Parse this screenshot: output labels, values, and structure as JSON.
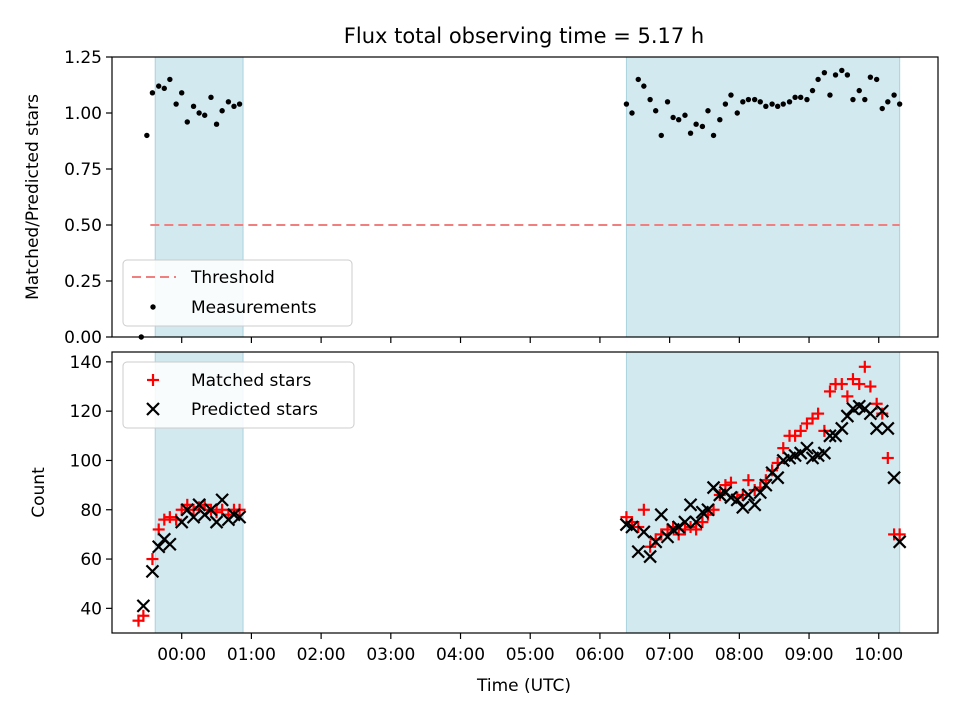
{
  "chart_data": [
    {
      "type": "scatter",
      "title": "Flux total observing time = 5.17 h",
      "ylabel": "Matched/Predicted stars",
      "xlabel": "",
      "ylim": [
        0,
        1.25
      ],
      "yticks": [
        "0.00",
        "0.25",
        "0.50",
        "0.75",
        "1.00",
        "1.25"
      ],
      "ytick_values": [
        0,
        0.25,
        0.5,
        0.75,
        1.0,
        1.25
      ],
      "threshold": 0.5,
      "legend": {
        "placement": "lower-left",
        "threshold_label": "Threshold",
        "measurements_label": "Measurements"
      },
      "series": [
        {
          "name": "Measurements",
          "color": "#000000",
          "x": [
            -0.58,
            -0.5,
            -0.42,
            -0.33,
            -0.25,
            -0.17,
            -0.08,
            0.0,
            0.08,
            0.17,
            0.25,
            0.33,
            0.42,
            0.5,
            0.58,
            0.67,
            0.75,
            0.83,
            6.38,
            6.46,
            6.55,
            6.63,
            6.72,
            6.8,
            6.88,
            6.97,
            7.05,
            7.13,
            7.22,
            7.3,
            7.38,
            7.47,
            7.55,
            7.63,
            7.72,
            7.8,
            7.88,
            7.97,
            8.05,
            8.13,
            8.22,
            8.3,
            8.38,
            8.47,
            8.55,
            8.63,
            8.72,
            8.8,
            8.88,
            8.97,
            9.05,
            9.13,
            9.22,
            9.3,
            9.38,
            9.47,
            9.55,
            9.63,
            9.72,
            9.8,
            9.88,
            9.97,
            10.05,
            10.13,
            10.22,
            10.3
          ],
          "y": [
            0.0,
            0.9,
            1.09,
            1.12,
            1.11,
            1.15,
            1.04,
            1.09,
            0.96,
            1.03,
            1.0,
            0.99,
            1.07,
            0.95,
            1.01,
            1.05,
            1.03,
            1.04,
            1.04,
            1.0,
            1.15,
            1.12,
            1.06,
            1.01,
            0.9,
            1.05,
            0.98,
            0.97,
            0.99,
            0.91,
            0.95,
            0.94,
            1.01,
            0.9,
            0.97,
            1.04,
            1.08,
            1.0,
            1.05,
            1.06,
            1.06,
            1.05,
            1.03,
            1.04,
            1.03,
            1.04,
            1.05,
            1.07,
            1.07,
            1.06,
            1.1,
            1.15,
            1.18,
            1.08,
            1.17,
            1.19,
            1.17,
            1.06,
            1.1,
            1.06,
            1.16,
            1.15,
            1.02,
            1.05,
            1.08,
            1.04
          ]
        }
      ]
    },
    {
      "type": "scatter",
      "title": "",
      "ylabel": "Count",
      "xlabel": "Time (UTC)",
      "ylim": [
        30,
        144
      ],
      "yticks": [
        "40",
        "60",
        "80",
        "100",
        "120",
        "140"
      ],
      "ytick_values": [
        40,
        60,
        80,
        100,
        120,
        140
      ],
      "legend": {
        "placement": "upper-left"
      },
      "series": [
        {
          "name": "Matched stars",
          "color": "#ff0000",
          "marker": "+",
          "x": [
            -0.62,
            -0.55,
            -0.42,
            -0.33,
            -0.25,
            -0.17,
            -0.08,
            0.0,
            0.08,
            0.17,
            0.25,
            0.33,
            0.42,
            0.5,
            0.58,
            0.67,
            0.75,
            0.83,
            6.38,
            6.46,
            6.55,
            6.63,
            6.72,
            6.8,
            6.88,
            6.97,
            7.05,
            7.13,
            7.22,
            7.3,
            7.38,
            7.47,
            7.55,
            7.63,
            7.72,
            7.8,
            7.88,
            7.97,
            8.05,
            8.13,
            8.22,
            8.3,
            8.38,
            8.47,
            8.55,
            8.63,
            8.72,
            8.8,
            8.88,
            8.97,
            9.05,
            9.13,
            9.22,
            9.3,
            9.38,
            9.47,
            9.55,
            9.63,
            9.72,
            9.8,
            9.88,
            9.97,
            10.05,
            10.13,
            10.22,
            10.3
          ],
          "y": [
            35,
            37,
            60,
            72,
            76,
            77,
            76,
            80,
            82,
            80,
            81,
            82,
            80,
            79,
            80,
            78,
            80,
            80,
            77,
            75,
            73,
            80,
            65,
            68,
            70,
            72,
            73,
            70,
            72,
            73,
            72,
            75,
            78,
            80,
            86,
            90,
            91,
            85,
            86,
            92,
            88,
            89,
            92,
            96,
            99,
            105,
            110,
            110,
            112,
            115,
            117,
            119,
            112,
            128,
            131,
            131,
            126,
            133,
            131,
            138,
            130,
            123,
            119,
            101,
            70,
            70
          ]
        },
        {
          "name": "Predicted stars",
          "color": "#000000",
          "marker": "x",
          "x": [
            -0.55,
            -0.42,
            -0.33,
            -0.25,
            -0.17,
            0.0,
            0.08,
            0.17,
            0.25,
            0.33,
            0.42,
            0.5,
            0.58,
            0.67,
            0.75,
            0.83,
            6.38,
            6.46,
            6.55,
            6.63,
            6.72,
            6.8,
            6.88,
            6.97,
            7.05,
            7.13,
            7.22,
            7.3,
            7.38,
            7.47,
            7.55,
            7.63,
            7.72,
            7.8,
            7.88,
            7.97,
            8.05,
            8.13,
            8.22,
            8.3,
            8.38,
            8.47,
            8.55,
            8.63,
            8.72,
            8.8,
            8.88,
            8.97,
            9.05,
            9.13,
            9.22,
            9.3,
            9.38,
            9.47,
            9.55,
            9.63,
            9.72,
            9.8,
            9.88,
            9.97,
            10.05,
            10.13,
            10.22,
            10.3
          ],
          "y": [
            41,
            55,
            65,
            68,
            66,
            75,
            80,
            77,
            82,
            78,
            80,
            75,
            84,
            76,
            78,
            77,
            74,
            73,
            63,
            71,
            61,
            67,
            78,
            69,
            72,
            73,
            75,
            82,
            75,
            79,
            80,
            89,
            86,
            87,
            85,
            84,
            81,
            86,
            82,
            87,
            90,
            95,
            93,
            100,
            101,
            102,
            103,
            105,
            101,
            102,
            103,
            110,
            110,
            113,
            118,
            121,
            122,
            121,
            119,
            113,
            120,
            113,
            93,
            67
          ]
        }
      ]
    }
  ],
  "x_axis": {
    "range": [
      -1.0,
      10.85
    ],
    "ticks": [
      0,
      1,
      2,
      3,
      4,
      5,
      6,
      7,
      8,
      9,
      10
    ],
    "tick_labels": [
      "00:00",
      "01:00",
      "02:00",
      "03:00",
      "04:00",
      "05:00",
      "06:00",
      "07:00",
      "08:00",
      "09:00",
      "10:00"
    ]
  },
  "observing_windows": [
    [
      -0.38,
      0.88
    ],
    [
      6.38,
      10.3
    ]
  ],
  "colors": {
    "window": "#d3e9f0",
    "window_edge": "#a9d3df",
    "threshold": "#f08080",
    "matched": "#ff0000",
    "predicted": "#000000"
  }
}
